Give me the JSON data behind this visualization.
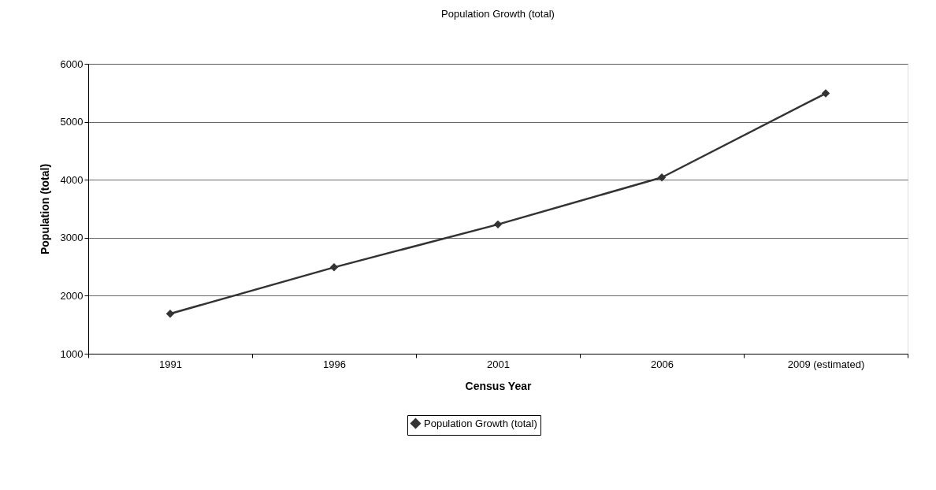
{
  "chart_data": {
    "type": "line",
    "title": "Population Growth (total)",
    "xlabel": "Census Year",
    "ylabel": "Population (total)",
    "categories": [
      "1991",
      "1996",
      "2001",
      "2006",
      "2009 (estimated)"
    ],
    "series": [
      {
        "name": "Population Growth (total)",
        "color": "#333333",
        "values": [
          1690,
          2490,
          3230,
          4040,
          5490
        ]
      }
    ],
    "ylim": [
      1000,
      6000
    ],
    "yticks": [
      1000,
      2000,
      3000,
      4000,
      5000,
      6000
    ],
    "grid": "y",
    "legend": "bottom",
    "marker": "diamond",
    "line_style": "solid"
  }
}
